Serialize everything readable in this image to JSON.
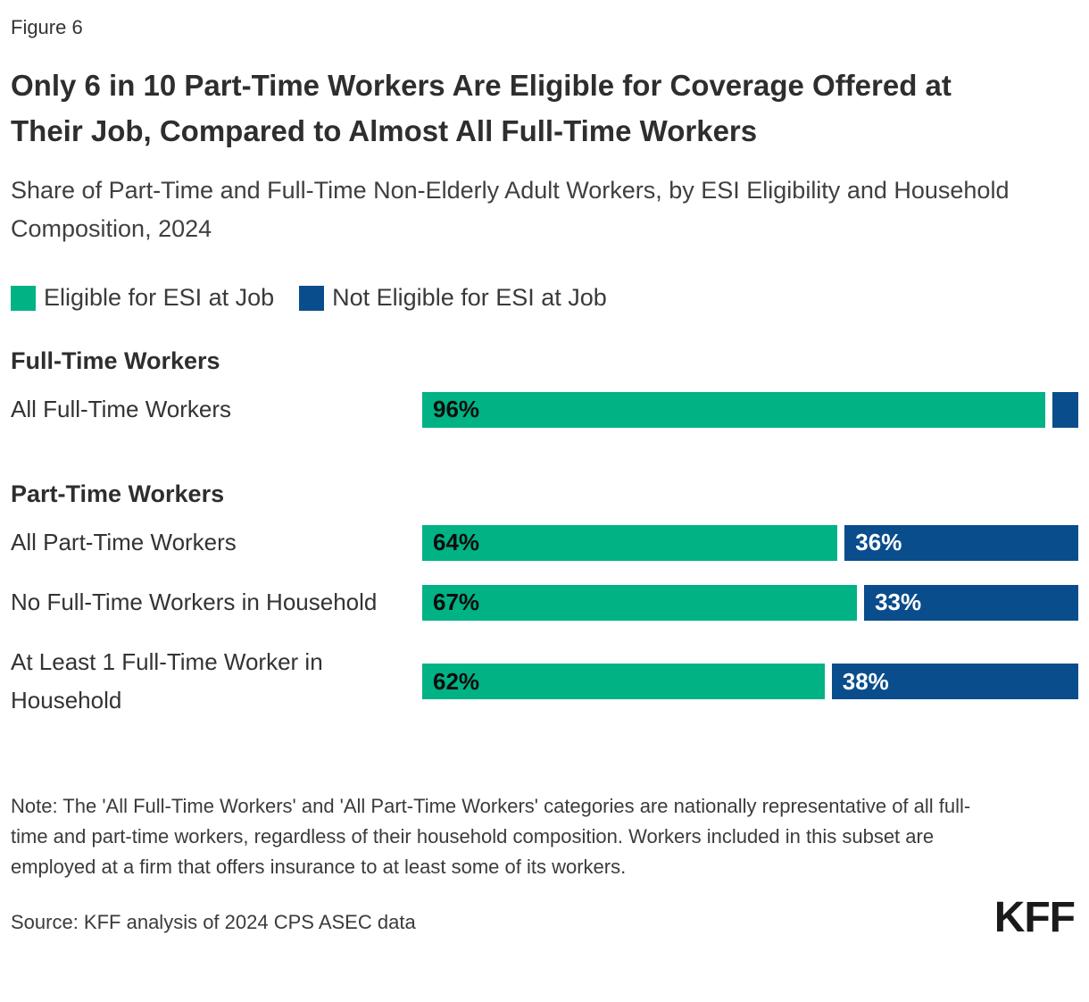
{
  "figure_label": "Figure 6",
  "title": "Only 6 in 10 Part-Time Workers Are Eligible for Coverage Offered at Their Job, Compared to Almost All Full-Time Workers",
  "subtitle": "Share of Part-Time and Full-Time Non-Elderly Adult Workers, by ESI Eligibility and Household Composition, 2024",
  "colors": {
    "eligible": "#00B284",
    "not_eligible": "#0A4D8C",
    "eligible_value_text": "#0d0d0d",
    "not_eligible_value_text": "#ffffff"
  },
  "legend": {
    "eligible_label": "Eligible for ESI at Job",
    "not_eligible_label": "Not Eligible for ESI at Job"
  },
  "chart_data": {
    "type": "bar",
    "orientation": "horizontal",
    "stacked": true,
    "unit": "percent",
    "xlim": [
      0,
      100
    ],
    "grid": false,
    "legend_position": "top",
    "value_labels": "inside-left",
    "title": "Only 6 in 10 Part-Time Workers Are Eligible for Coverage Offered at Their Job, Compared to Almost All Full-Time Workers",
    "subtitle": "Share of Part-Time and Full-Time Non-Elderly Adult Workers, by ESI Eligibility and Household Composition, 2024",
    "categories": [
      "All Full-Time Workers",
      "All Part-Time Workers",
      "No Full-Time Workers in Household",
      "At Least 1 Full-Time Worker in Household"
    ],
    "group_headings": [
      "Full-Time Workers",
      "Part-Time Workers"
    ],
    "series": [
      {
        "name": "Eligible for ESI at Job",
        "color": "#00B284",
        "values": [
          96,
          64,
          67,
          62
        ],
        "labels": [
          "96%",
          "64%",
          "67%",
          "62%"
        ]
      },
      {
        "name": "Not Eligible for ESI at Job",
        "color": "#0A4D8C",
        "values": [
          4,
          36,
          33,
          38
        ],
        "labels": [
          "",
          "36%",
          "33%",
          "38%"
        ]
      }
    ]
  },
  "sections": [
    {
      "heading": "Full-Time Workers",
      "rows": [
        {
          "label": "All Full-Time Workers",
          "segments": [
            {
              "value": 96,
              "label": "96%"
            },
            {
              "value": 4,
              "label": ""
            }
          ]
        }
      ]
    },
    {
      "heading": "Part-Time Workers",
      "rows": [
        {
          "label": "All Part-Time Workers",
          "segments": [
            {
              "value": 64,
              "label": "64%"
            },
            {
              "value": 36,
              "label": "36%"
            }
          ]
        },
        {
          "label": "No Full-Time Workers in Household",
          "segments": [
            {
              "value": 67,
              "label": "67%"
            },
            {
              "value": 33,
              "label": "33%"
            }
          ]
        },
        {
          "label": "At Least 1 Full-Time Worker in Household",
          "segments": [
            {
              "value": 62,
              "label": "62%"
            },
            {
              "value": 38,
              "label": "38%"
            }
          ]
        }
      ]
    }
  ],
  "note": "Note: The 'All Full-Time Workers' and 'All Part-Time Workers' categories are nationally representative of all full-time and part-time workers, regardless of their household composition. Workers included in this subset are employed at a firm that offers insurance to at least some of its workers.",
  "source": "Source: KFF analysis of 2024 CPS ASEC data",
  "logo_text": "KFF"
}
